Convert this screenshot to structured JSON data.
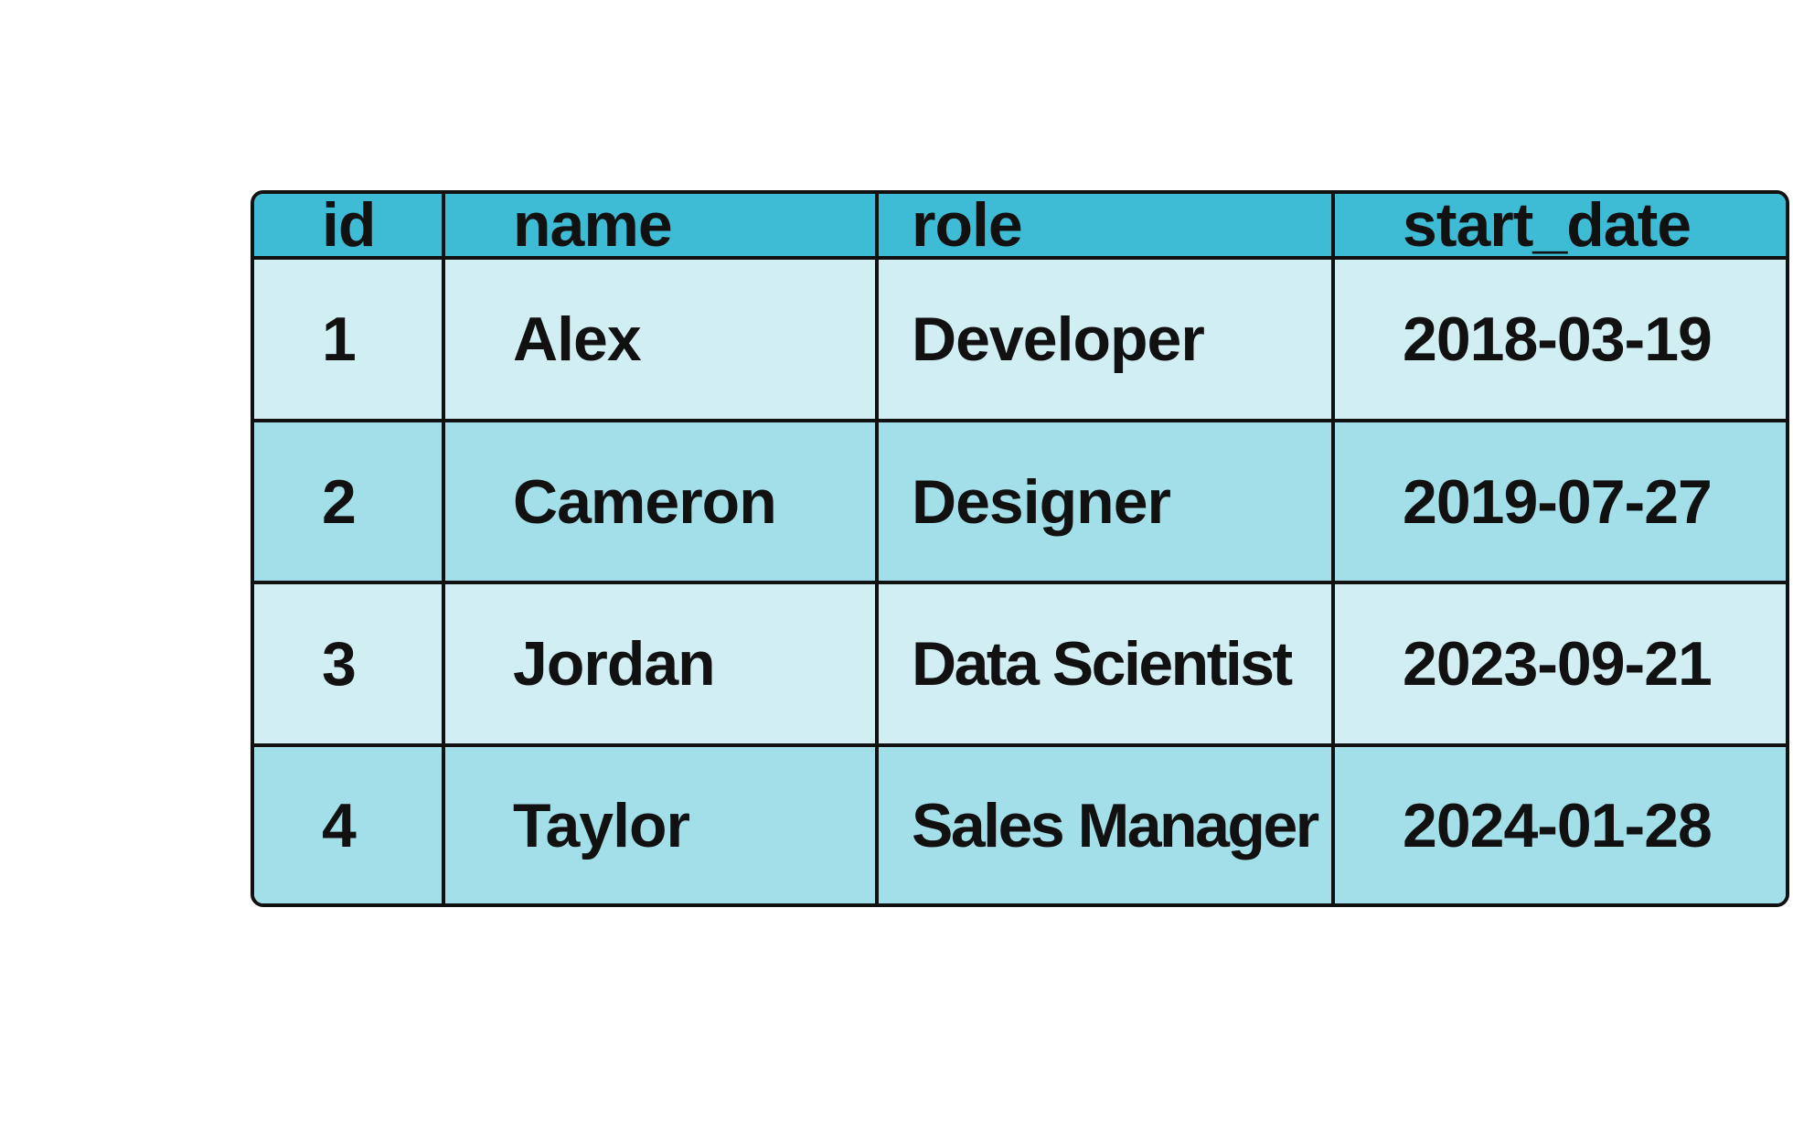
{
  "chart_data": {
    "type": "table",
    "columns": [
      "id",
      "name",
      "role",
      "start_date"
    ],
    "rows": [
      [
        "1",
        "Alex",
        "Developer",
        "2018-03-19"
      ],
      [
        "2",
        "Cameron",
        "Designer",
        "2019-07-27"
      ],
      [
        "3",
        "Jordan",
        "Data Scientist",
        "2023-09-21"
      ],
      [
        "4",
        "Taylor",
        "Sales Manager",
        "2024-01-28"
      ]
    ],
    "colors": {
      "header": "#3ebcd6",
      "row_light": "#d1eff3",
      "row_dark": "#a3dfe9",
      "border": "#111111",
      "text": "#111111"
    }
  }
}
